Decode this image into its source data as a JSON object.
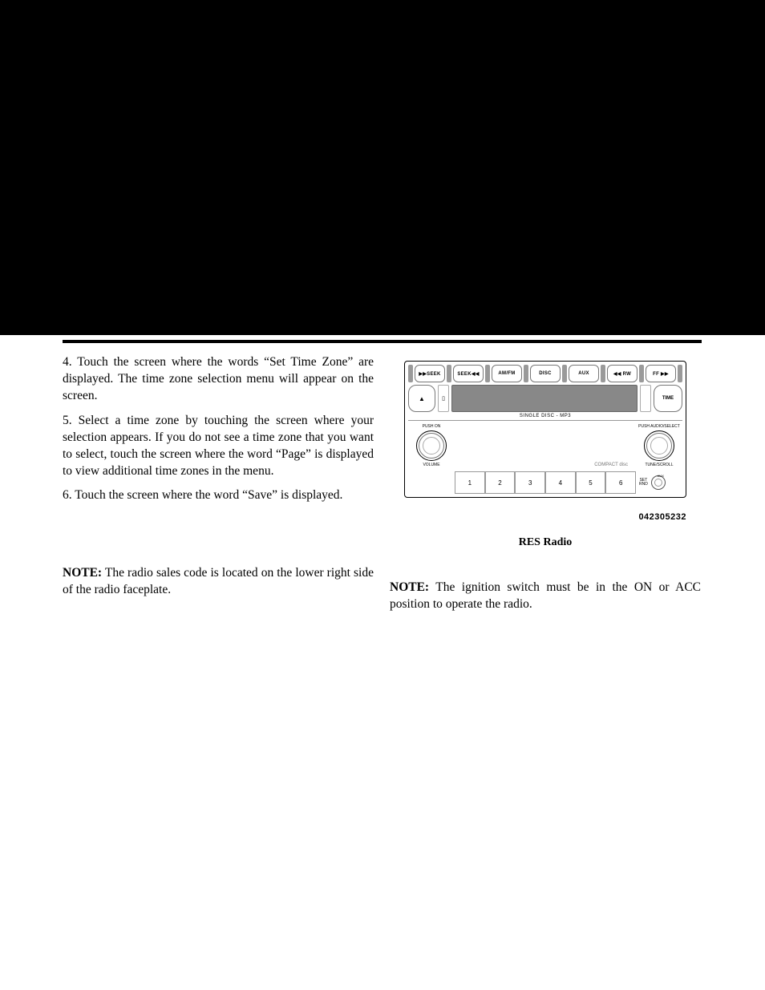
{
  "left": {
    "step4": "4.  Touch the screen where the words “Set Time Zone” are displayed. The time zone selection menu will appear on the screen.",
    "step5": "5.  Select a time zone by touching the screen where your selection appears. If you do not see a time zone that you want to select, touch the screen where the word “Page” is displayed to view additional time zones in the menu.",
    "step6": "6.  Touch the screen where the word “Save” is displayed.",
    "note_label": "NOTE:",
    "note_text": "  The radio sales code is located on the lower right side of the radio faceplate."
  },
  "radio": {
    "top_buttons": [
      "▶▶SEEK",
      "SEEK◀◀",
      "AM/FM",
      "DISC",
      "AUX",
      "◀◀ RW",
      "FF ▶▶"
    ],
    "eject": "▲",
    "time": "TIME",
    "single_disc": "SINGLE DISC - MP3",
    "left_knob_top": "PUSH ON",
    "left_knob_bot": "VOLUME",
    "right_knob_top": "PUSH AUDIO/SELECT",
    "right_knob_bot": "TUNE/SCROLL",
    "cd_logo": "COMPACT disc",
    "presets": [
      "1",
      "2",
      "3",
      "4",
      "5",
      "6"
    ],
    "set_rnd_1": "SET",
    "set_rnd_2": "RND",
    "aux": "AUX",
    "code": "042305232",
    "caption": "RES Radio"
  },
  "right": {
    "note_label": "NOTE:",
    "note_text": "  The ignition switch must be in the ON or ACC position to operate the radio."
  }
}
